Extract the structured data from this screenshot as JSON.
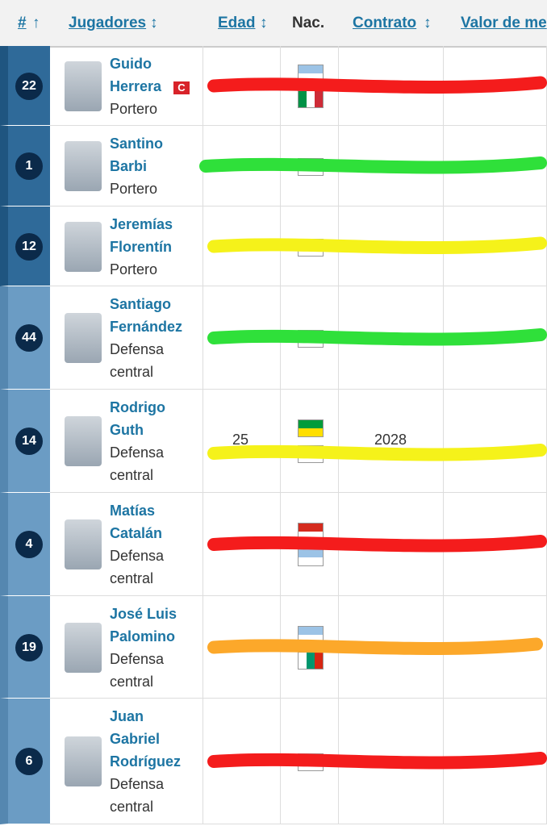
{
  "header": {
    "columns": [
      "#",
      "Jugadores",
      "Edad",
      "Nac.",
      "Contrato",
      "Valor de me"
    ]
  },
  "rows": [
    {
      "number": "22",
      "name": [
        "Guido",
        "Herrera"
      ],
      "captain": "C",
      "position": [
        "Portero"
      ]
    },
    {
      "number": "1",
      "name": [
        "Santino",
        "Barbi"
      ],
      "position": [
        "Portero"
      ]
    },
    {
      "number": "12",
      "name": [
        "Jeremías",
        "Florentín"
      ],
      "position": [
        "Portero"
      ]
    },
    {
      "number": "44",
      "name": [
        "Santiago",
        "Fernández"
      ],
      "position": [
        "Defensa",
        "central"
      ]
    },
    {
      "number": "14",
      "name": [
        "Rodrigo",
        "Guth"
      ],
      "position": [
        "Defensa",
        "central"
      ],
      "age": "25",
      "contract": "2028"
    },
    {
      "number": "4",
      "name": [
        "Matías",
        "Catalán"
      ],
      "position": [
        "Defensa",
        "central"
      ]
    },
    {
      "number": "19",
      "name": [
        "José Luis",
        "Palomino"
      ],
      "position": [
        "Defensa",
        "central"
      ]
    },
    {
      "number": "6",
      "name": [
        "Juan",
        "Gabriel",
        "Rodríguez"
      ],
      "position": [
        "Defensa",
        "central"
      ]
    }
  ]
}
